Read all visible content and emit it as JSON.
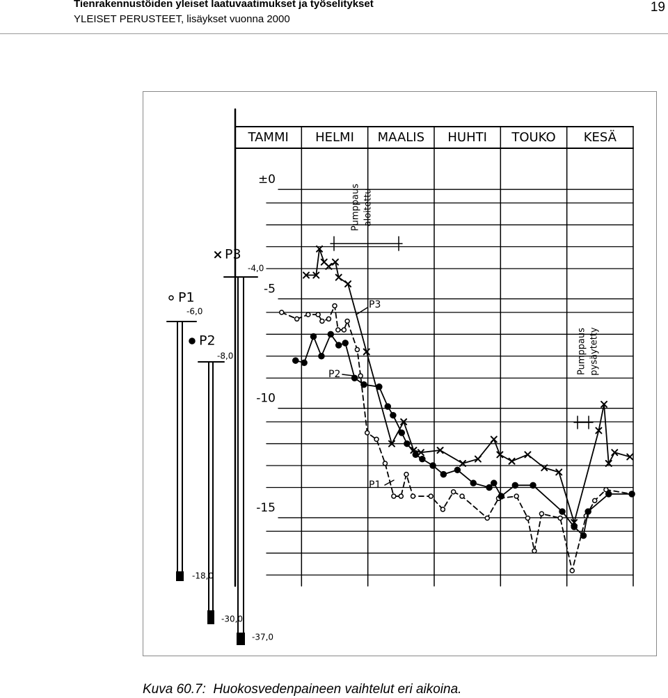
{
  "header": {
    "title": "Tienrakennustöiden yleiset laatuvaatimukset ja työselitykset",
    "subtitle": "YLEISET PERUSTEET, lisäykset vuonna 2000",
    "page": "19"
  },
  "chart_data": {
    "type": "line",
    "categories": [
      "TAMMI",
      "HELMI",
      "MAALIS",
      "HUHTI",
      "TOUKO",
      "KESÄ"
    ],
    "xlim": [
      0,
      6
    ],
    "ylim": [
      -18.5,
      1.5
    ],
    "yticks": [
      {
        "value": 0,
        "label": "±0"
      },
      -5,
      -10,
      -15
    ],
    "grid": true,
    "series": [
      {
        "name": "P1",
        "color": "#000000",
        "marker": "open-circle",
        "dashed": true,
        "x": [
          0.7,
          0.93,
          1.1,
          1.25,
          1.31,
          1.41,
          1.5,
          1.55,
          1.64,
          1.69,
          1.84,
          1.89,
          1.99,
          2.13,
          2.26,
          2.39,
          2.5,
          2.58,
          2.68,
          2.95,
          3.13,
          3.29,
          3.42,
          3.8,
          3.97,
          4.24,
          4.41,
          4.51,
          4.62,
          4.9,
          5.08,
          5.29,
          5.42,
          5.59,
          5.98
        ],
        "values": [
          -6.0,
          -6.3,
          -6.1,
          -6.1,
          -6.4,
          -6.3,
          -5.7,
          -6.8,
          -6.8,
          -6.4,
          -7.7,
          -8.9,
          -11.5,
          -11.8,
          -12.9,
          -14.4,
          -14.4,
          -13.4,
          -14.4,
          -14.4,
          -15.0,
          -14.2,
          -14.4,
          -15.4,
          -14.5,
          -14.4,
          -15.4,
          -16.9,
          -15.2,
          -15.4,
          -17.8,
          -15.3,
          -14.6,
          -14.1,
          -14.3
        ]
      },
      {
        "name": "P2",
        "color": "#000000",
        "marker": "filled-circle",
        "dashed": false,
        "x": [
          0.91,
          1.04,
          1.18,
          1.3,
          1.44,
          1.56,
          1.66,
          1.8,
          1.94,
          2.17,
          2.3,
          2.38,
          2.51,
          2.59,
          2.72,
          2.82,
          2.98,
          3.14,
          3.35,
          3.59,
          3.83,
          3.9,
          4.01,
          4.22,
          4.49,
          4.93,
          5.11,
          5.25,
          5.32,
          5.63,
          5.98
        ],
        "values": [
          -8.2,
          -8.3,
          -7.1,
          -8.0,
          -7.0,
          -7.5,
          -7.4,
          -9.0,
          -9.3,
          -9.4,
          -10.3,
          -10.7,
          -11.5,
          -12.0,
          -12.5,
          -12.7,
          -13.0,
          -13.4,
          -13.2,
          -13.8,
          -14.0,
          -13.8,
          -14.4,
          -13.9,
          -13.9,
          -15.1,
          -15.8,
          -16.2,
          -15.1,
          -14.3,
          -14.3
        ]
      },
      {
        "name": "P3",
        "color": "#000000",
        "marker": "cross",
        "dashed": false,
        "x": [
          1.07,
          1.22,
          1.27,
          1.34,
          1.41,
          1.51,
          1.56,
          1.7,
          1.98,
          2.36,
          2.54,
          2.69,
          2.8,
          3.09,
          3.43,
          3.66,
          3.9,
          3.99,
          4.17,
          4.41,
          4.66,
          4.88,
          5.11,
          5.48,
          5.56,
          5.63,
          5.72,
          5.95
        ],
        "values": [
          -4.3,
          -4.3,
          -3.1,
          -3.7,
          -3.9,
          -3.7,
          -4.4,
          -4.7,
          -7.8,
          -12.0,
          -11.0,
          -12.3,
          -12.4,
          -12.3,
          -12.9,
          -12.7,
          -11.8,
          -12.5,
          -12.8,
          -12.5,
          -13.1,
          -13.3,
          -15.6,
          -11.4,
          -10.2,
          -12.9,
          -12.4,
          -12.6
        ]
      }
    ],
    "annotations": {
      "pump_start": [
        "Pumppaus",
        "aloitettu"
      ],
      "pump_stop": [
        "Pumppaus",
        "pysäytetty"
      ]
    },
    "piezometers": [
      {
        "top": "-6,0",
        "bottom": "-18,0"
      },
      {
        "top": "-8,0",
        "bottom": "-30,0"
      },
      {
        "top": "-4,0",
        "bottom": "-37,0"
      }
    ]
  },
  "caption": {
    "label": "Kuva 60.7:",
    "text": "Huokosvedenpaineen vaihtelut eri aikoina."
  }
}
